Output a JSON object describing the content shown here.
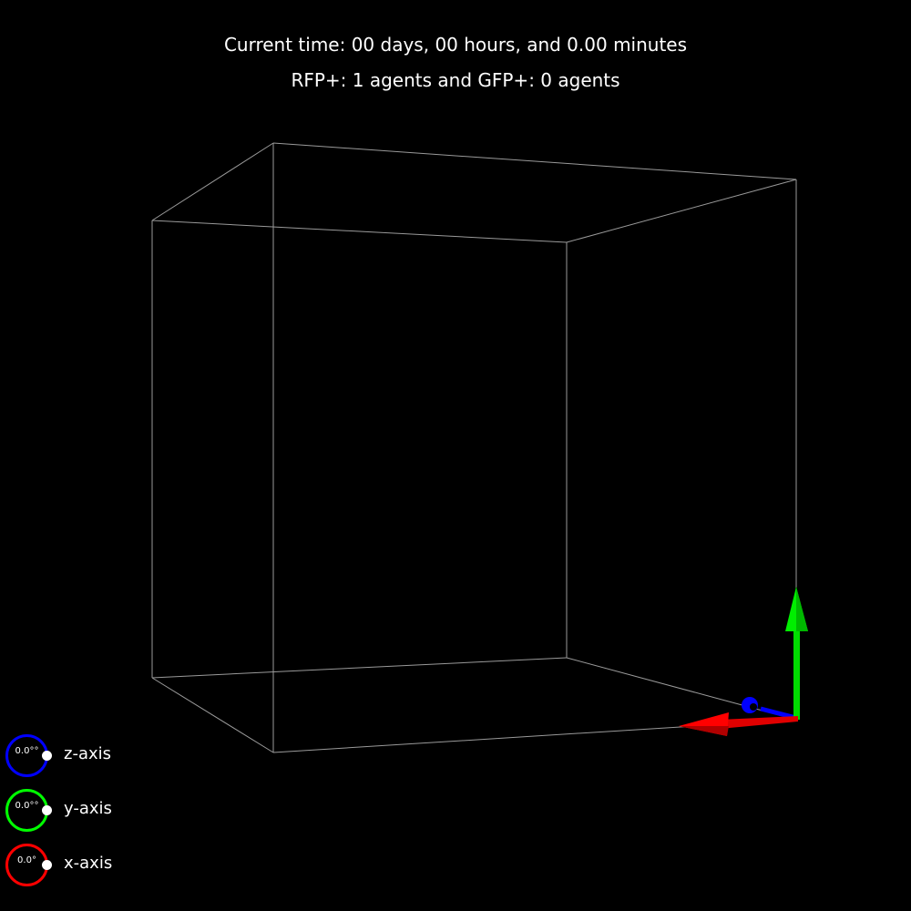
{
  "status": {
    "time_text": "Current time: 00 days, 00 hours, and 0.00 minutes",
    "count_text": "RFP+: 1 agents and GFP+: 0 agents"
  },
  "rotation_controls": [
    {
      "axis": "z",
      "label": "z-axis",
      "value": "0.0°°",
      "color": "#0000ff"
    },
    {
      "axis": "y",
      "label": "y-axis",
      "value": "0.0°°",
      "color": "#00ff00"
    },
    {
      "axis": "x",
      "label": "x-axis",
      "value": "0.0°",
      "color": "#ff0000"
    }
  ],
  "scene": {
    "background_color": "#000000",
    "box_edge_color": "#9a9a9a",
    "axis_colors": {
      "x": "#ff0000",
      "y": "#00ff00",
      "z": "#0000ff"
    },
    "agents": [
      {
        "type": "RFP+",
        "count": 1
      },
      {
        "type": "GFP+",
        "count": 0
      }
    ]
  }
}
